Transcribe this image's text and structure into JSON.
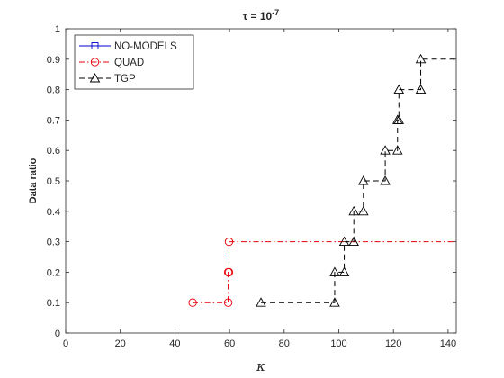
{
  "chart_data": {
    "type": "line",
    "subtype": "stairs",
    "title": {
      "prefix": "τ = 10",
      "exponent": "-7"
    },
    "xlabel": "κ",
    "ylabel": "Data ratio",
    "xlim": [
      0,
      143
    ],
    "ylim": [
      0,
      1
    ],
    "xticks": [
      0,
      20,
      40,
      60,
      80,
      100,
      120,
      140
    ],
    "yticks": [
      0,
      0.1,
      0.2,
      0.3,
      0.4,
      0.5,
      0.6,
      0.7,
      0.8,
      0.9,
      1
    ],
    "grid": false,
    "legend": {
      "position": "top-left"
    },
    "series": [
      {
        "name": "NO-MODELS",
        "color": "#0000cc",
        "marker": "square",
        "line": "solid",
        "points": []
      },
      {
        "name": "QUAD",
        "color": "#e8000b",
        "marker": "circle",
        "line": "dashdot",
        "points": [
          [
            46.5,
            0.1
          ],
          [
            59.5,
            0.1
          ],
          [
            59.5,
            0.2
          ],
          [
            59.8,
            0.2
          ],
          [
            59.8,
            0.3
          ],
          [
            143,
            0.3
          ]
        ]
      },
      {
        "name": "TGP",
        "color": "#000000",
        "marker": "triangle",
        "line": "dashed",
        "points": [
          [
            71.5,
            0.1
          ],
          [
            98.5,
            0.1
          ],
          [
            98.5,
            0.2
          ],
          [
            102,
            0.2
          ],
          [
            102,
            0.3
          ],
          [
            105.5,
            0.3
          ],
          [
            105.5,
            0.4
          ],
          [
            109,
            0.4
          ],
          [
            109,
            0.5
          ],
          [
            117,
            0.5
          ],
          [
            117,
            0.6
          ],
          [
            121.5,
            0.6
          ],
          [
            121.5,
            0.7
          ],
          [
            122,
            0.7
          ],
          [
            122,
            0.8
          ],
          [
            130,
            0.8
          ],
          [
            130,
            0.9
          ],
          [
            143,
            0.9
          ]
        ]
      }
    ]
  }
}
